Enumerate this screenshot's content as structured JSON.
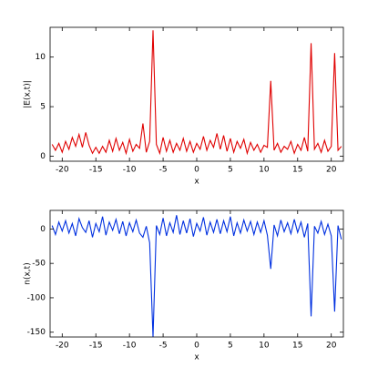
{
  "chart_data": [
    {
      "type": "line",
      "xlabel": "x",
      "ylabel": "|E(x,t)|",
      "color": "#e00000",
      "xlim": [
        -21.8,
        21.8
      ],
      "ylim": [
        -0.5,
        13
      ],
      "xticks": [
        -20,
        -15,
        -10,
        -5,
        0,
        5,
        10,
        15,
        20
      ],
      "yticks": [
        0,
        5,
        10
      ],
      "x": [
        -21.5,
        -21,
        -20.5,
        -20,
        -19.5,
        -19,
        -18.5,
        -18,
        -17.5,
        -17,
        -16.5,
        -16,
        -15.5,
        -15,
        -14.5,
        -14,
        -13.5,
        -13,
        -12.5,
        -12,
        -11.5,
        -11,
        -10.5,
        -10,
        -9.5,
        -9,
        -8.5,
        -8,
        -7.5,
        -7,
        -6.5,
        -6,
        -5.5,
        -5,
        -4.5,
        -4,
        -3.5,
        -3,
        -2.5,
        -2,
        -1.5,
        -1,
        -0.5,
        0,
        0.5,
        1,
        1.5,
        2,
        2.5,
        3,
        3.5,
        4,
        4.5,
        5,
        5.5,
        6,
        6.5,
        7,
        7.5,
        8,
        8.5,
        9,
        9.5,
        10,
        10.5,
        11,
        11.5,
        12,
        12.5,
        13,
        13.5,
        14,
        14.5,
        15,
        15.5,
        16,
        16.5,
        17,
        17.5,
        18,
        18.5,
        19,
        19.5,
        20,
        20.5,
        21,
        21.5
      ],
      "values": [
        1.2,
        0.6,
        1.3,
        0.4,
        1.5,
        0.7,
        1.9,
        1.0,
        2.2,
        0.9,
        2.4,
        1.1,
        0.3,
        0.9,
        0.3,
        1.0,
        0.4,
        1.6,
        0.5,
        1.8,
        0.6,
        1.4,
        0.3,
        1.7,
        0.5,
        1.2,
        0.8,
        3.3,
        0.4,
        1.5,
        12.7,
        1.2,
        0.3,
        1.9,
        0.5,
        1.6,
        0.4,
        1.3,
        0.6,
        1.8,
        0.5,
        1.5,
        0.4,
        1.3,
        0.7,
        2.0,
        0.6,
        1.6,
        0.9,
        2.3,
        0.7,
        2.1,
        0.5,
        1.8,
        0.4,
        1.5,
        0.8,
        1.7,
        0.3,
        1.4,
        0.6,
        1.2,
        0.4,
        1.1,
        0.9,
        7.6,
        0.6,
        1.3,
        0.4,
        1.0,
        0.7,
        1.5,
        0.3,
        1.2,
        0.6,
        1.9,
        0.5,
        11.4,
        0.7,
        1.3,
        0.4,
        1.6,
        0.5,
        1.0,
        10.4,
        0.6,
        1.0
      ]
    },
    {
      "type": "line",
      "xlabel": "x",
      "ylabel": "n(x,t)",
      "color": "#0030e0",
      "xlim": [
        -21.8,
        21.8
      ],
      "ylim": [
        -157,
        27
      ],
      "xticks": [
        -20,
        -15,
        -10,
        -5,
        0,
        5,
        10,
        15,
        20
      ],
      "yticks": [
        0,
        -50,
        -100,
        -150
      ],
      "x": [
        -21.5,
        -21,
        -20.5,
        -20,
        -19.5,
        -19,
        -18.5,
        -18,
        -17.5,
        -17,
        -16.5,
        -16,
        -15.5,
        -15,
        -14.5,
        -14,
        -13.5,
        -13,
        -12.5,
        -12,
        -11.5,
        -11,
        -10.5,
        -10,
        -9.5,
        -9,
        -8.5,
        -8,
        -7.5,
        -7,
        -6.5,
        -6,
        -5.5,
        -5,
        -4.5,
        -4,
        -3.5,
        -3,
        -2.5,
        -2,
        -1.5,
        -1,
        -0.5,
        0,
        0.5,
        1,
        1.5,
        2,
        2.5,
        3,
        3.5,
        4,
        4.5,
        5,
        5.5,
        6,
        6.5,
        7,
        7.5,
        8,
        8.5,
        9,
        9.5,
        10,
        10.5,
        11,
        11.5,
        12,
        12.5,
        13,
        13.5,
        14,
        14.5,
        15,
        15.5,
        16,
        16.5,
        17,
        17.5,
        18,
        18.5,
        19,
        19.5,
        20,
        20.5,
        21,
        21.5
      ],
      "values": [
        5,
        -8,
        10,
        -3,
        12,
        -6,
        8,
        -10,
        15,
        2,
        -5,
        12,
        -12,
        8,
        -4,
        18,
        -9,
        10,
        -2,
        14,
        -7,
        11,
        -10,
        9,
        -4,
        13,
        -6,
        -12,
        4,
        -20,
        -157,
        5,
        -8,
        16,
        -10,
        9,
        -5,
        20,
        -8,
        12,
        -6,
        15,
        -11,
        8,
        -3,
        17,
        -9,
        10,
        -5,
        14,
        -7,
        12,
        -4,
        18,
        -10,
        9,
        -6,
        13,
        -3,
        11,
        -8,
        10,
        -5,
        12,
        -9,
        -58,
        6,
        -10,
        13,
        -4,
        9,
        -7,
        14,
        -5,
        10,
        -12,
        8,
        -127,
        4,
        -6,
        11,
        -8,
        7,
        -10,
        -120,
        5,
        -15
      ]
    }
  ]
}
